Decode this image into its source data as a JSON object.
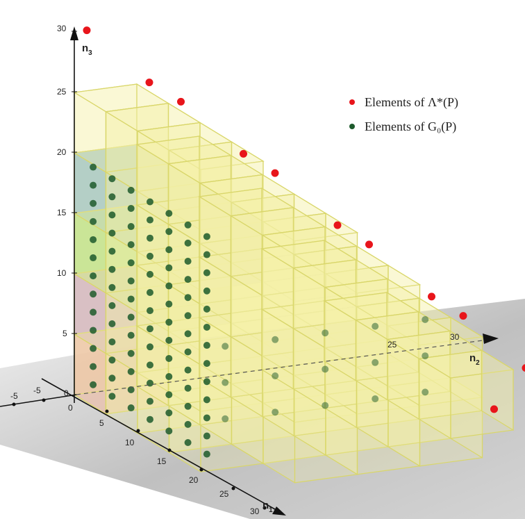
{
  "axes": {
    "x": {
      "name": "n",
      "sub": "1",
      "ticks": [
        "0",
        "5",
        "10",
        "15",
        "20",
        "25",
        "30"
      ]
    },
    "y": {
      "name": "n",
      "sub": "2",
      "ticks": [
        "-5",
        "25",
        "30"
      ]
    },
    "z": {
      "name": "n",
      "sub": "3",
      "ticks": [
        "5",
        "10",
        "15",
        "20",
        "25",
        "30"
      ]
    },
    "origin_label": "0",
    "neg_label": "-5"
  },
  "legend": {
    "red_label": "Elements of Λ*(P)",
    "green_label": "Elements of G₀(P)"
  },
  "colors": {
    "red": "#e8151b",
    "green": "#1d5a2c",
    "box_fill": "#f5f0a8",
    "box_edge": "#d9d66a",
    "pink": "#e79aa6",
    "purple": "#b07ad6",
    "lightgreen": "#8dd36a",
    "blue": "#5a9fd8",
    "floor": "#bdbdbd"
  }
}
